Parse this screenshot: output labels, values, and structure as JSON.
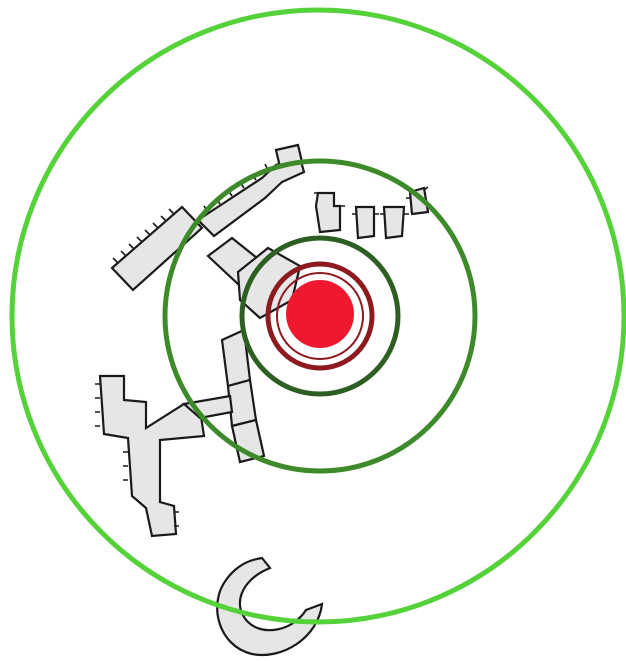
{
  "diagram": {
    "type": "concentric-proximity-rings-site-plan",
    "colors": {
      "background": "#ffffff",
      "building_fill": "#e6e6e6",
      "building_outline": "#1a1a1a",
      "core_red": "#f0182f",
      "ring_dark_red": "#8c1a1f",
      "ring_dark_green": "#2d5e22",
      "ring_mid_green": "#3d8a2a",
      "ring_light_green": "#55d23a"
    },
    "rings": [
      {
        "name": "ring-light-green",
        "color": "#55d23a"
      },
      {
        "name": "ring-mid-green",
        "color": "#3d8a2a"
      },
      {
        "name": "ring-dark-green",
        "color": "#2d5e22"
      },
      {
        "name": "ring-dark-red",
        "color": "#8c1a1f"
      },
      {
        "name": "ring-thin-red",
        "color": "#8c1a1f"
      }
    ],
    "core": {
      "name": "core-red-disc",
      "color": "#f0182f"
    }
  }
}
